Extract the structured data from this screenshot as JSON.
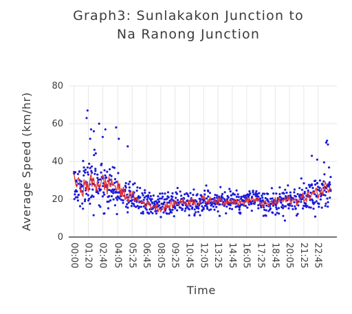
{
  "chart_data": {
    "type": "scatter",
    "title_line1": "Graph3: Sunlakakon Junction to",
    "title_line2": "Na Ranong Junction",
    "xlabel": "Time",
    "ylabel": "Average Speed (km/hr)",
    "ylim": [
      0,
      80
    ],
    "yticks": [
      0,
      20,
      40,
      60,
      80
    ],
    "xlim_minutes": [
      -30,
      1470
    ],
    "xticks": [
      "00:00",
      "01:20",
      "02:40",
      "04:05",
      "05:25",
      "06:45",
      "08:05",
      "09:25",
      "10:45",
      "12:05",
      "13:25",
      "14:45",
      "16:05",
      "17:25",
      "18:45",
      "20:05",
      "21:25",
      "22:45"
    ],
    "grid": true,
    "legend": "none",
    "colors": {
      "points": "#1a1adc",
      "line": "#e8322a",
      "grid": "#e6e6e6",
      "axis": "#222222"
    },
    "series": [
      {
        "mode": "markers",
        "description_of_points": "individual observations, 5-minute interval",
        "time": [
          "00:00",
          "00:30",
          "01:00",
          "01:30",
          "02:00",
          "02:30",
          "03:00",
          "03:30",
          "04:00",
          "04:30",
          "05:00",
          "05:30",
          "06:00",
          "06:30",
          "07:00",
          "07:30",
          "08:00",
          "08:30",
          "09:00",
          "09:30",
          "10:00",
          "10:30",
          "11:00",
          "11:30",
          "12:00",
          "12:30",
          "13:00",
          "13:30",
          "14:00",
          "14:30",
          "15:00",
          "15:30",
          "16:00",
          "16:30",
          "17:00",
          "17:30",
          "18:00",
          "18:30",
          "19:00",
          "19:30",
          "20:00",
          "20:30",
          "21:00",
          "21:30",
          "22:00",
          "22:30",
          "23:00",
          "23:30"
        ],
        "mean_speed": [
          30,
          27,
          26,
          29,
          28,
          30,
          27,
          29,
          26,
          24,
          21,
          22,
          19,
          18,
          17,
          16,
          15,
          16,
          17,
          18,
          19,
          18,
          19,
          18,
          20,
          19,
          20,
          19,
          18,
          20,
          19,
          18,
          19,
          20,
          19,
          18,
          17,
          18,
          19,
          19,
          20,
          19,
          20,
          21,
          22,
          23,
          24,
          27
        ],
        "spread": [
          10,
          12,
          14,
          14,
          15,
          14,
          15,
          13,
          12,
          10,
          8,
          7,
          6,
          6,
          6,
          6,
          6,
          6,
          6,
          6,
          6,
          6,
          6,
          6,
          6,
          6,
          6,
          6,
          6,
          6,
          6,
          6,
          6,
          6,
          6,
          6,
          6,
          6,
          7,
          7,
          7,
          7,
          8,
          8,
          9,
          9,
          9,
          10
        ],
        "outliers": [
          [
            75,
            67
          ],
          [
            70,
            63
          ],
          [
            95,
            57
          ],
          [
            110,
            56
          ],
          [
            140,
            60
          ],
          [
            175,
            57
          ],
          [
            235,
            58
          ],
          [
            250,
            52
          ],
          [
            300,
            48
          ],
          [
            90,
            52
          ],
          [
            160,
            53
          ],
          [
            1410,
            50
          ],
          [
            1415,
            51
          ],
          [
            1420,
            49
          ],
          [
            1330,
            43
          ],
          [
            1360,
            41
          ]
        ]
      },
      {
        "mode": "lines",
        "description_of_line": "smoothed average"
      }
    ]
  }
}
